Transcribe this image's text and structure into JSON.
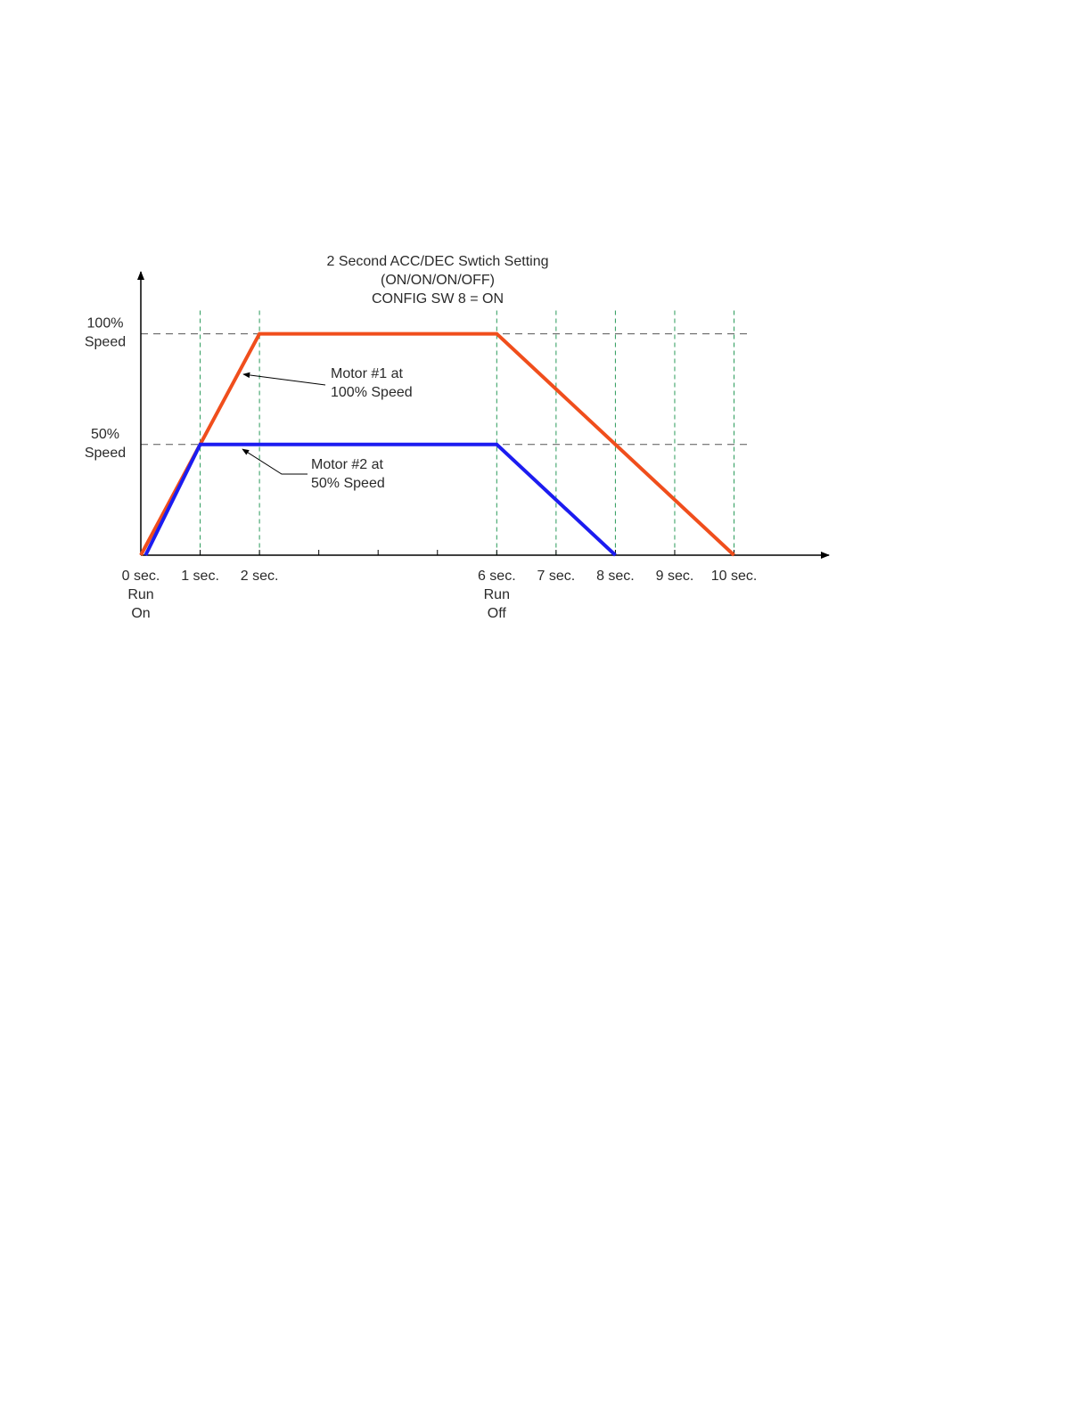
{
  "chart_data": {
    "type": "line",
    "title": "2 Second ACC/DEC Swtich Setting\n(ON/ON/ON/OFF)\nCONFIG SW 8 = ON",
    "series": [
      {
        "color": "#f04e1c",
        "x": [
          0,
          2,
          6,
          10
        ],
        "values": [
          0,
          100,
          100,
          0
        ]
      },
      {
        "color": "#1c1cf0",
        "x": [
          0.08,
          1,
          6,
          8
        ],
        "values": [
          0,
          50,
          50,
          0
        ]
      }
    ],
    "xlim": [
      0,
      11.6
    ],
    "ylim": [
      0,
      128
    ],
    "xticks": [
      {
        "value": 0,
        "label": "0 sec.\nRun\nOn"
      },
      {
        "value": 1,
        "label": "1 sec."
      },
      {
        "value": 2,
        "label": "2 sec."
      },
      {
        "value": 6,
        "label": "6 sec.\nRun\nOff"
      },
      {
        "value": 7,
        "label": "7 sec."
      },
      {
        "value": 8,
        "label": "8 sec."
      },
      {
        "value": 9,
        "label": "9 sec."
      },
      {
        "value": 10,
        "label": "10 sec."
      }
    ],
    "minor_xticks": [
      3,
      4,
      5
    ],
    "yticks": [
      {
        "value": 50,
        "label": "50%\nSpeed"
      },
      {
        "value": 100,
        "label": "100%\nSpeed"
      }
    ],
    "grid": true,
    "annotations": [
      "Motor #1 at\n100% Speed",
      "Motor #2 at\n50% Speed"
    ]
  }
}
